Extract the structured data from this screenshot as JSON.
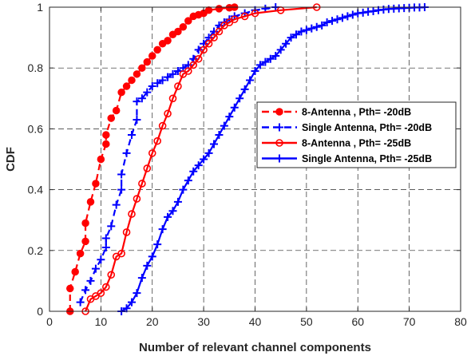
{
  "chart_data": {
    "type": "line",
    "xlabel": "Number of relevant channel components",
    "ylabel": "CDF",
    "xlim": [
      0,
      80
    ],
    "ylim": [
      0,
      1
    ],
    "x_ticks": [
      "0",
      "10",
      "20",
      "30",
      "40",
      "50",
      "60",
      "70",
      "80"
    ],
    "y_ticks": [
      "0",
      "0.2",
      "0.4",
      "0.6",
      "0.8",
      "1"
    ],
    "grid": true,
    "legend_position": "right",
    "series": [
      {
        "name": "8-Antenna , Pth= -20dB",
        "color": "#ff0000",
        "line_style": "dashed",
        "marker": "circle-filled",
        "x": [
          4,
          4,
          5,
          6,
          7,
          7,
          8,
          9,
          10,
          11,
          11,
          12,
          13,
          14,
          15,
          16,
          17,
          18,
          19,
          20,
          21,
          22,
          23,
          24,
          25,
          26,
          27,
          28,
          29,
          30,
          31,
          33,
          35,
          36
        ],
        "y": [
          0,
          0.075,
          0.13,
          0.19,
          0.23,
          0.29,
          0.36,
          0.42,
          0.5,
          0.55,
          0.58,
          0.635,
          0.66,
          0.72,
          0.74,
          0.76,
          0.78,
          0.8,
          0.82,
          0.84,
          0.86,
          0.88,
          0.89,
          0.91,
          0.92,
          0.935,
          0.955,
          0.97,
          0.975,
          0.98,
          0.99,
          0.995,
          0.998,
          1.0
        ]
      },
      {
        "name": "Single Antenna, Pth= -20dB",
        "color": "#0000ff",
        "line_style": "dashed",
        "marker": "plus",
        "x": [
          6,
          7,
          8,
          9,
          10,
          11,
          11,
          12,
          13,
          14,
          14,
          15,
          16,
          17,
          17,
          18,
          19,
          20,
          21,
          22,
          23,
          24,
          25,
          26,
          27,
          28,
          29,
          30,
          31,
          32,
          33,
          34,
          35,
          36,
          38,
          40,
          42,
          44
        ],
        "y": [
          0.03,
          0.07,
          0.1,
          0.14,
          0.17,
          0.21,
          0.24,
          0.28,
          0.35,
          0.4,
          0.45,
          0.52,
          0.58,
          0.63,
          0.69,
          0.7,
          0.72,
          0.74,
          0.75,
          0.76,
          0.77,
          0.78,
          0.79,
          0.8,
          0.81,
          0.83,
          0.86,
          0.88,
          0.9,
          0.92,
          0.94,
          0.95,
          0.96,
          0.97,
          0.98,
          0.99,
          0.995,
          1.0
        ]
      },
      {
        "name": "8-Antenna , Pth= -25dB",
        "color": "#ff0000",
        "line_style": "solid",
        "marker": "circle-open",
        "x": [
          7,
          8,
          9,
          10,
          11,
          12,
          13,
          14,
          15,
          16,
          17,
          18,
          19,
          20,
          21,
          22,
          23,
          24,
          25,
          26,
          27,
          28,
          29,
          30,
          31,
          32,
          33,
          34,
          35,
          36,
          38,
          40,
          45,
          52
        ],
        "y": [
          0,
          0.04,
          0.05,
          0.06,
          0.08,
          0.12,
          0.18,
          0.19,
          0.26,
          0.32,
          0.37,
          0.42,
          0.47,
          0.52,
          0.56,
          0.61,
          0.65,
          0.7,
          0.74,
          0.78,
          0.79,
          0.81,
          0.83,
          0.86,
          0.88,
          0.9,
          0.92,
          0.94,
          0.95,
          0.96,
          0.97,
          0.98,
          0.99,
          1.0
        ]
      },
      {
        "name": "Single Antenna, Pth= -25dB",
        "color": "#0000ff",
        "line_style": "solid",
        "marker": "plus",
        "x": [
          14,
          15,
          16,
          17,
          18,
          19,
          20,
          21,
          22,
          23,
          24,
          25,
          26,
          27,
          28,
          29,
          30,
          31,
          32,
          33,
          34,
          35,
          36,
          37,
          38,
          39,
          40,
          41,
          42,
          43,
          44,
          45,
          46,
          47,
          48,
          49,
          50,
          51,
          52,
          53,
          54,
          55,
          56,
          57,
          58,
          59,
          60,
          61,
          62,
          63,
          64,
          65,
          66,
          67,
          68,
          69,
          70,
          71,
          72,
          73
        ],
        "y": [
          0,
          0.01,
          0.03,
          0.06,
          0.11,
          0.15,
          0.18,
          0.22,
          0.27,
          0.31,
          0.33,
          0.36,
          0.4,
          0.43,
          0.46,
          0.48,
          0.5,
          0.52,
          0.55,
          0.58,
          0.61,
          0.64,
          0.67,
          0.7,
          0.73,
          0.76,
          0.79,
          0.81,
          0.82,
          0.83,
          0.84,
          0.86,
          0.88,
          0.9,
          0.91,
          0.92,
          0.925,
          0.93,
          0.935,
          0.94,
          0.95,
          0.955,
          0.96,
          0.965,
          0.97,
          0.975,
          0.98,
          0.982,
          0.985,
          0.987,
          0.99,
          0.992,
          0.994,
          0.995,
          0.996,
          0.997,
          0.998,
          0.999,
          0.999,
          1.0
        ]
      }
    ]
  }
}
